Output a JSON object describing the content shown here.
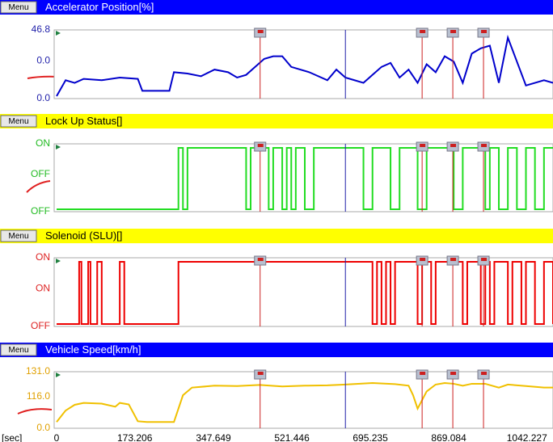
{
  "panels": [
    {
      "title": "Accelerator Position[%]",
      "menu": "Menu",
      "header": "#0000ff",
      "title_color": "#ffffff",
      "label_color": "#2222aa",
      "trace_color": "#0000cc",
      "step": false,
      "ylabels": [
        "46.8",
        "0.0",
        "0.0"
      ],
      "ylim": [
        0,
        46.8
      ],
      "x": [
        0,
        20,
        40,
        60,
        100,
        140,
        180,
        190,
        250,
        260,
        290,
        320,
        350,
        380,
        400,
        420,
        440,
        460,
        480,
        500,
        520,
        560,
        600,
        620,
        640,
        660,
        680,
        700,
        720,
        740,
        760,
        780,
        800,
        820,
        840,
        860,
        880,
        900,
        920,
        940,
        960,
        980,
        1000,
        1040,
        1080,
        1100
      ],
      "values": [
        0,
        12,
        10,
        13,
        12,
        14,
        13,
        4,
        4,
        18,
        17,
        15,
        20,
        18,
        14,
        16,
        22,
        28,
        30,
        30,
        22,
        18,
        12,
        20,
        14,
        12,
        10,
        16,
        22,
        25,
        14,
        20,
        10,
        24,
        18,
        30,
        26,
        10,
        32,
        36,
        38,
        10,
        44,
        8,
        12,
        10
      ]
    },
    {
      "title": "Lock Up Status[]",
      "menu": "Menu",
      "header": "#ffff00",
      "title_color": "#000000",
      "label_color": "#22bb22",
      "trace_color": "#22dd22",
      "step": true,
      "ylabels": [
        "ON",
        "OFF",
        "OFF"
      ],
      "ylim": [
        0,
        1
      ],
      "x": [
        0,
        270,
        280,
        290,
        300,
        420,
        430,
        450,
        470,
        480,
        500,
        510,
        520,
        530,
        550,
        570,
        580,
        600,
        640,
        680,
        700,
        720,
        740,
        760,
        800,
        820,
        840,
        880,
        900,
        940,
        950,
        960,
        980,
        1000,
        1020,
        1040,
        1060,
        1080,
        1100
      ],
      "values": [
        0,
        1,
        0,
        1,
        1,
        0,
        1,
        1,
        0,
        1,
        0,
        1,
        0,
        1,
        0,
        1,
        1,
        1,
        1,
        0,
        1,
        1,
        0,
        1,
        0,
        1,
        1,
        0,
        1,
        1,
        0,
        1,
        0,
        1,
        0,
        1,
        0,
        1,
        1
      ]
    },
    {
      "title": "Solenoid (SLU)[]",
      "menu": "Menu",
      "header": "#ffff00",
      "title_color": "#000000",
      "label_color": "#dd2222",
      "trace_color": "#ee0000",
      "step": true,
      "ylabels": [
        "ON",
        "ON",
        "OFF"
      ],
      "ylim": [
        0,
        1
      ],
      "x": [
        0,
        50,
        55,
        70,
        75,
        90,
        100,
        140,
        150,
        170,
        270,
        700,
        710,
        720,
        730,
        740,
        750,
        800,
        810,
        830,
        840,
        900,
        910,
        940,
        950,
        960,
        970,
        1000,
        1010,
        1030,
        1040,
        1060,
        1080,
        1100
      ],
      "values": [
        0,
        1,
        0,
        1,
        0,
        1,
        0,
        1,
        0,
        0,
        1,
        0,
        1,
        0,
        1,
        0,
        1,
        0,
        1,
        0,
        1,
        0,
        1,
        0,
        1,
        0,
        1,
        0,
        1,
        0,
        1,
        0,
        1,
        0
      ]
    },
    {
      "title": "Vehicle Speed[km/h]",
      "menu": "Menu",
      "header": "#0000ff",
      "title_color": "#ffffff",
      "label_color": "#e0a000",
      "trace_color": "#f0c000",
      "step": false,
      "ylabels": [
        "131.0",
        "116.0",
        "0.0"
      ],
      "ylim": [
        0,
        131
      ],
      "x": [
        0,
        20,
        40,
        60,
        100,
        130,
        140,
        160,
        180,
        200,
        260,
        280,
        300,
        350,
        400,
        450,
        500,
        550,
        600,
        640,
        700,
        750,
        780,
        790,
        800,
        820,
        840,
        860,
        880,
        900,
        920,
        950,
        980,
        1000,
        1040,
        1080,
        1100
      ],
      "values": [
        10,
        40,
        55,
        60,
        58,
        50,
        60,
        56,
        12,
        10,
        10,
        80,
        100,
        105,
        104,
        107,
        103,
        105,
        106,
        108,
        112,
        109,
        105,
        80,
        45,
        90,
        108,
        112,
        110,
        105,
        110,
        110,
        100,
        108,
        104,
        100,
        100
      ]
    }
  ],
  "xlim": [
    0,
    1100
  ],
  "markers": [
    451,
    810,
    878,
    946
  ],
  "cursor": 640,
  "xaxis": {
    "unit": "[sec]",
    "ticks": [
      {
        "value": 0,
        "label": "0"
      },
      {
        "value": 173.206,
        "label": "173.206"
      },
      {
        "value": 347.649,
        "label": "347.649"
      },
      {
        "value": 521.446,
        "label": "521.446"
      },
      {
        "value": 695.235,
        "label": "695.235"
      },
      {
        "value": 869.084,
        "label": "869.084"
      },
      {
        "value": 1042.227,
        "label": "1042.227"
      }
    ]
  }
}
